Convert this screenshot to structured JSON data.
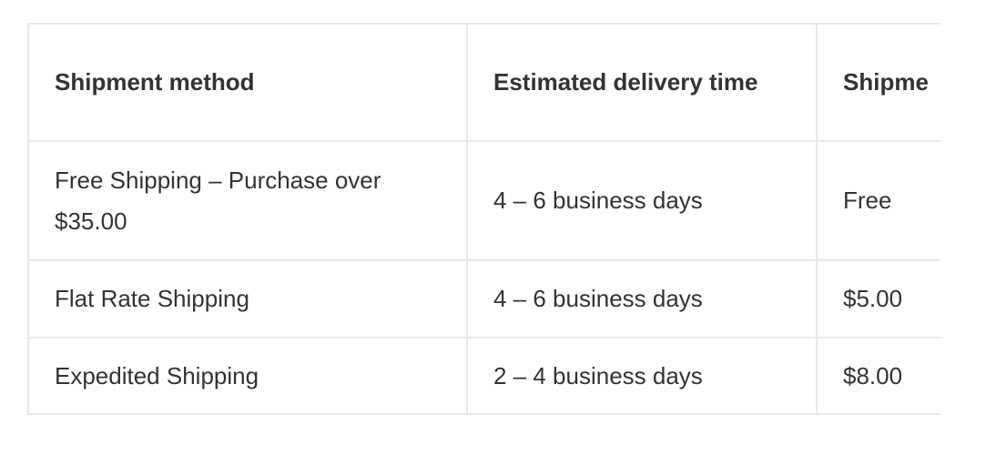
{
  "table": {
    "headers": [
      "Shipment method",
      "Estimated delivery time",
      "Shipme"
    ],
    "rows": [
      [
        "Free Shipping – Purchase over $35.00",
        "4 – 6 business days",
        "Free"
      ],
      [
        "Flat Rate Shipping",
        "4 – 6 business days",
        "$5.00"
      ],
      [
        "Expedited Shipping",
        "2 – 4 business days",
        "$8.00"
      ]
    ]
  },
  "colors": {
    "text": "#333333",
    "border": "#e8e8e8"
  }
}
